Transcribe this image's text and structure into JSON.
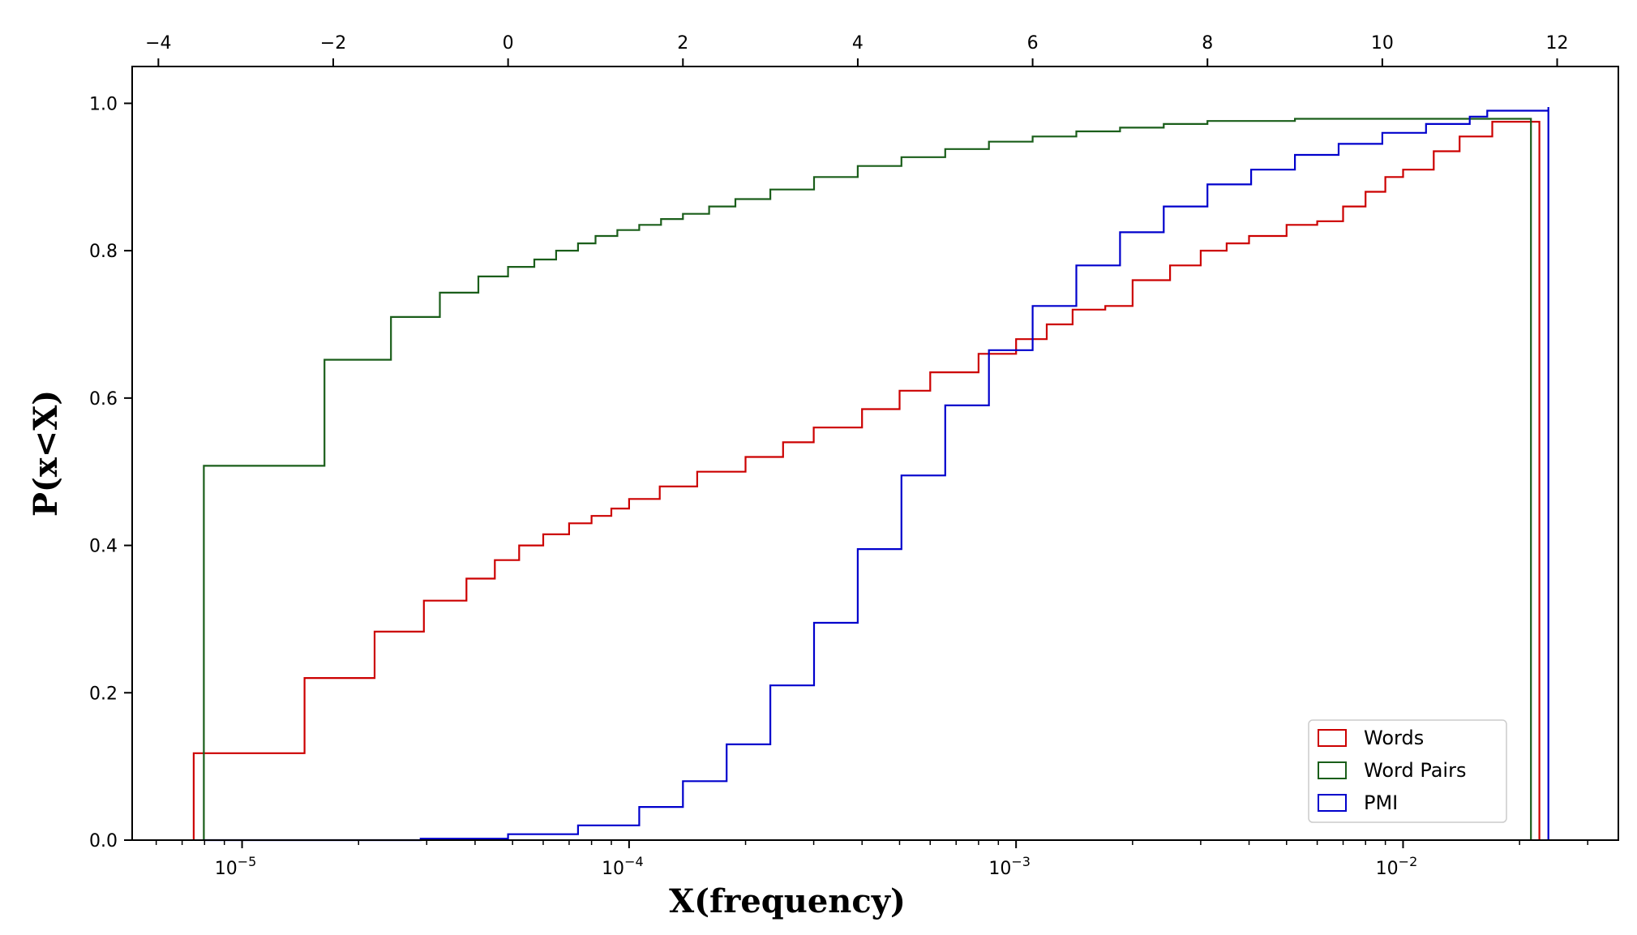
{
  "chart_data": {
    "type": "line",
    "drawstyle": "steps-post",
    "xlabel": "X(frequency)",
    "ylabel": "P(x<X)",
    "x_scale": "log",
    "xlim": [
      5.2e-06,
      0.036
    ],
    "ylim": [
      0,
      1.05
    ],
    "bottom_ticks": [
      {
        "value": 1e-05,
        "base": "10",
        "exp": "−5"
      },
      {
        "value": 0.0001,
        "base": "10",
        "exp": "−4"
      },
      {
        "value": 0.001,
        "base": "10",
        "exp": "−3"
      },
      {
        "value": 0.01,
        "base": "10",
        "exp": "−2"
      }
    ],
    "y_ticks": [
      {
        "value": 0.0,
        "label": "0.0"
      },
      {
        "value": 0.2,
        "label": "0.2"
      },
      {
        "value": 0.4,
        "label": "0.4"
      },
      {
        "value": 0.6,
        "label": "0.6"
      },
      {
        "value": 0.8,
        "label": "0.8"
      },
      {
        "value": 1.0,
        "label": "1.0"
      }
    ],
    "top_axis": {
      "lim": [
        -4.3,
        12.7
      ],
      "ticks": [
        {
          "value": -4,
          "label": "−4"
        },
        {
          "value": -2,
          "label": "−2"
        },
        {
          "value": 0,
          "label": "0"
        },
        {
          "value": 2,
          "label": "2"
        },
        {
          "value": 4,
          "label": "4"
        },
        {
          "value": 6,
          "label": "6"
        },
        {
          "value": 8,
          "label": "8"
        },
        {
          "value": 10,
          "label": "10"
        },
        {
          "value": 12,
          "label": "12"
        }
      ]
    },
    "legend_position": "lower-right",
    "series": [
      {
        "name": "Words",
        "color": "#cc0000",
        "axis": "bottom",
        "x": [
          7.5e-06,
          1.45e-05,
          2.2e-05,
          2.95e-05,
          3.8e-05,
          4.5e-05,
          5.2e-05,
          6e-05,
          7e-05,
          8e-05,
          9e-05,
          0.0001,
          0.00012,
          0.00015,
          0.0002,
          0.00025,
          0.0003,
          0.0004,
          0.0005,
          0.0006,
          0.0008,
          0.001,
          0.0012,
          0.0014,
          0.0017,
          0.002,
          0.0025,
          0.003,
          0.0035,
          0.004,
          0.005,
          0.006,
          0.007,
          0.008,
          0.009,
          0.01,
          0.012,
          0.014,
          0.017,
          0.0225
        ],
        "y": [
          0.118,
          0.22,
          0.283,
          0.325,
          0.355,
          0.38,
          0.4,
          0.415,
          0.43,
          0.44,
          0.45,
          0.463,
          0.48,
          0.5,
          0.52,
          0.54,
          0.56,
          0.585,
          0.61,
          0.635,
          0.66,
          0.68,
          0.7,
          0.72,
          0.725,
          0.76,
          0.78,
          0.8,
          0.81,
          0.82,
          0.835,
          0.84,
          0.86,
          0.88,
          0.9,
          0.91,
          0.935,
          0.955,
          0.975,
          0.975
        ]
      },
      {
        "name": "Word Pairs",
        "color": "#1a5e1a",
        "axis": "top",
        "x": [
          -3.48,
          -2.1,
          -1.34,
          -0.78,
          -0.34,
          0.0,
          0.3,
          0.55,
          0.8,
          1.0,
          1.25,
          1.5,
          1.75,
          2.0,
          2.3,
          2.6,
          3.0,
          3.5,
          4.0,
          4.5,
          5.0,
          5.5,
          6.0,
          6.5,
          7.0,
          7.5,
          8.0,
          9.0,
          10.0,
          11.0,
          11.7
        ],
        "y": [
          0.508,
          0.652,
          0.71,
          0.743,
          0.765,
          0.778,
          0.788,
          0.8,
          0.81,
          0.82,
          0.828,
          0.835,
          0.843,
          0.85,
          0.86,
          0.87,
          0.883,
          0.9,
          0.915,
          0.927,
          0.938,
          0.948,
          0.955,
          0.962,
          0.967,
          0.972,
          0.976,
          0.979,
          0.979,
          0.979,
          0.979
        ]
      },
      {
        "name": "PMI",
        "color": "#0000cc",
        "axis": "top",
        "x": [
          -3.48,
          -1.0,
          0.0,
          0.8,
          1.5,
          2.0,
          2.5,
          3.0,
          3.5,
          4.0,
          4.5,
          5.0,
          5.5,
          6.0,
          6.5,
          7.0,
          7.5,
          8.0,
          8.5,
          9.0,
          9.5,
          10.0,
          10.5,
          11.0,
          11.2,
          11.9
        ],
        "y": [
          0.0,
          0.002,
          0.008,
          0.02,
          0.045,
          0.08,
          0.13,
          0.21,
          0.295,
          0.395,
          0.495,
          0.59,
          0.665,
          0.725,
          0.78,
          0.825,
          0.86,
          0.89,
          0.91,
          0.93,
          0.945,
          0.96,
          0.972,
          0.982,
          0.99,
          0.995
        ]
      }
    ]
  }
}
